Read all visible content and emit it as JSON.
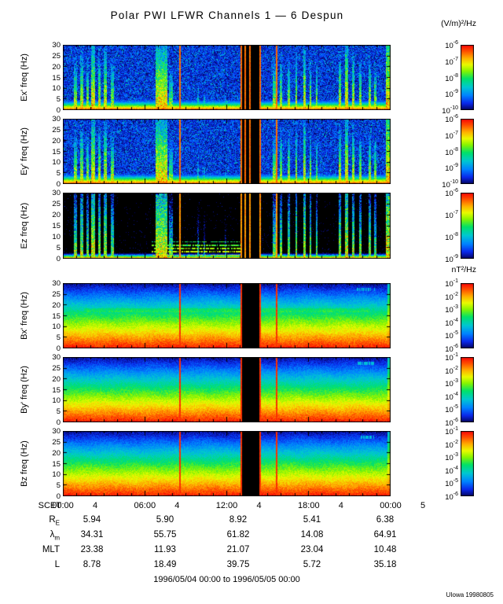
{
  "title": "Polar PWI LFWR Channels 1 — 6 Despun",
  "caption": "1996/05/04 00:00 to 1996/05/05 00:00",
  "credit": "UIowa 19980805",
  "chart_data": {
    "type": "heatmap",
    "title": "Polar PWI LFWR Channels 1 — 6 Despun",
    "x_axis": {
      "label": "SCET",
      "range_hours": [
        0,
        24
      ],
      "major_tick_hours": [
        0,
        6,
        12,
        18,
        24
      ],
      "tick_labels": [
        "00:00",
        "06:00",
        "12:00",
        "18:00",
        "00:00"
      ],
      "tick_days": [
        "4",
        "4",
        "4",
        "4",
        "5"
      ]
    },
    "y_axis": {
      "range_hz": [
        0,
        30
      ],
      "ticks": [
        0,
        5,
        10,
        15,
        20,
        25,
        30
      ]
    },
    "colorbar_units_electric": "(V/m)²/Hz",
    "colorbar_units_magnetic": "nT²/Hz",
    "panels": [
      {
        "id": "ex",
        "ylabel": "Ex' freq (Hz)",
        "kind": "electric",
        "vmin": -10,
        "vmax": -6,
        "colorbar_exponents": [
          -6,
          -7,
          -8,
          -9,
          -10
        ]
      },
      {
        "id": "ey",
        "ylabel": "Ey' freq (Hz)",
        "kind": "electric",
        "vmin": -10,
        "vmax": -6,
        "colorbar_exponents": [
          -6,
          -7,
          -8,
          -9,
          -10
        ]
      },
      {
        "id": "ez",
        "ylabel": "Ez freq (Hz)",
        "kind": "electric-dark",
        "vmin": -9,
        "vmax": -6,
        "colorbar_exponents": [
          -6,
          -7,
          -8,
          -9
        ]
      },
      {
        "id": "bx",
        "ylabel": "Bx' freq (Hz)",
        "kind": "magnetic",
        "vmin": -6,
        "vmax": -1,
        "colorbar_exponents": [
          -1,
          -2,
          -3,
          -4,
          -5,
          -6
        ]
      },
      {
        "id": "by",
        "ylabel": "By' freq (Hz)",
        "kind": "magnetic",
        "vmin": -6,
        "vmax": -1,
        "colorbar_exponents": [
          -1,
          -2,
          -3,
          -4,
          -5,
          -6
        ]
      },
      {
        "id": "bz",
        "ylabel": "Bz freq (Hz)",
        "kind": "magnetic",
        "vmin": -6,
        "vmax": -1,
        "colorbar_exponents": [
          -1,
          -2,
          -3,
          -4,
          -5,
          -6
        ]
      }
    ],
    "features": {
      "data_gap_hr": [
        13.1,
        14.42
      ],
      "red_lines_hr": [
        8.57,
        13.06,
        13.35,
        13.7,
        14.45,
        15.65
      ],
      "electric_bursts": [
        [
          0.9,
          0.1,
          -6.6,
          0.1
        ],
        [
          1.35,
          0.12,
          -6.5,
          0.09
        ],
        [
          1.8,
          0.1,
          -6.7,
          0.1
        ],
        [
          2.2,
          0.14,
          -6.35,
          0.07
        ],
        [
          2.65,
          0.1,
          -6.5,
          0.09
        ],
        [
          3.1,
          0.12,
          -6.45,
          0.08
        ],
        [
          3.6,
          0.1,
          -6.7,
          0.1
        ],
        [
          7.2,
          0.45,
          -6.3,
          0.07
        ],
        [
          7.9,
          0.12,
          -6.8,
          0.12
        ],
        [
          9.9,
          0.08,
          -7.4,
          0.14
        ],
        [
          10.35,
          0.06,
          -7.6,
          0.15
        ],
        [
          11.9,
          0.05,
          -7.8,
          0.16
        ],
        [
          15.5,
          0.1,
          -6.7,
          0.1
        ],
        [
          16.0,
          0.09,
          -6.6,
          0.1
        ],
        [
          16.55,
          0.08,
          -6.6,
          0.1
        ],
        [
          17.1,
          0.07,
          -6.5,
          0.09
        ],
        [
          17.7,
          0.1,
          -6.4,
          0.08
        ],
        [
          18.15,
          0.08,
          -6.6,
          0.1
        ],
        [
          18.6,
          0.07,
          -6.7,
          0.11
        ],
        [
          20.3,
          0.1,
          -6.5,
          0.09
        ],
        [
          20.8,
          0.12,
          -6.35,
          0.07
        ],
        [
          21.3,
          0.1,
          -6.5,
          0.09
        ],
        [
          21.8,
          0.08,
          -6.6,
          0.1
        ],
        [
          22.5,
          0.1,
          -6.55,
          0.1
        ],
        [
          22.9,
          0.07,
          -6.7,
          0.11
        ],
        [
          23.85,
          0.15,
          -6.3,
          0.05
        ]
      ],
      "magnetic_profile": {
        "v_at_0hz": -1.15,
        "v_at_30hz": -5.85
      },
      "ez_dashes": {
        "t_range": [
          6.5,
          13.0
        ],
        "f_max": 8,
        "spacing_hz": 1.5
      },
      "notes": "Electric panels: blue speckle background, red low-frequency band, broadband vertical bursts; black data gap ~13:06-14:27 with thin red marker lines; magnetic panels: smooth red-to-blue spectral gradient."
    }
  },
  "orbit_table": {
    "rows": [
      {
        "label_main": "R",
        "label_sub": "E",
        "values": [
          "5.94",
          "5.90",
          "8.92",
          "5.41",
          "6.38"
        ]
      },
      {
        "label_main": "λ",
        "label_sub": "m",
        "values": [
          "34.31",
          "55.75",
          "61.82",
          "14.08",
          "64.91"
        ]
      },
      {
        "label_main": "MLT",
        "label_sub": "",
        "values": [
          "23.38",
          "11.93",
          "21.07",
          "23.04",
          "10.48"
        ]
      },
      {
        "label_main": "L",
        "label_sub": "",
        "values": [
          "8.78",
          "18.49",
          "39.75",
          "5.72",
          "35.18"
        ]
      }
    ]
  }
}
